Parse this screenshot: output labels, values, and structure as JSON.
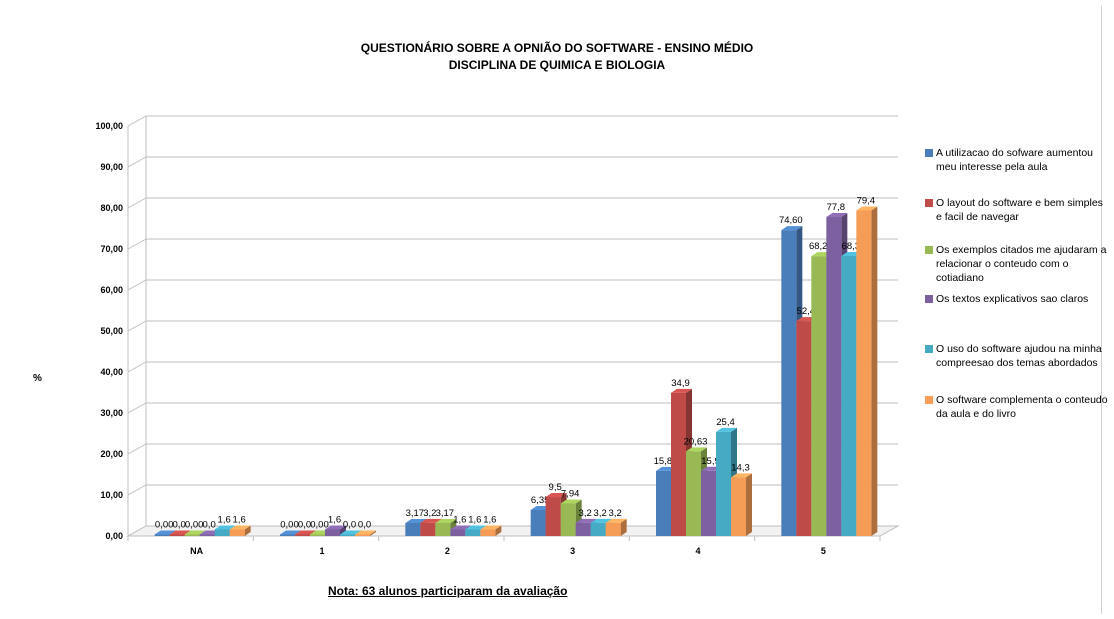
{
  "title_line1": "QUESTIONÁRIO SOBRE A OPNIÃO DO SOFTWARE - ENSINO MÉDIO",
  "title_line2": "DISCIPLINA DE QUIMICA E BIOLOGIA",
  "ylabel": "%",
  "note": "Nota: 63 alunos participaram da avaliação",
  "chart_data": {
    "type": "bar",
    "title": "QUESTIONÁRIO SOBRE A OPNIÃO DO SOFTWARE - ENSINO MÉDIO / DISCIPLINA DE QUIMICA E BIOLOGIA",
    "xlabel": "",
    "ylabel": "%",
    "ylim": [
      0,
      100
    ],
    "yticks": [
      "0,00",
      "10,00",
      "20,00",
      "30,00",
      "40,00",
      "50,00",
      "60,00",
      "70,00",
      "80,00",
      "90,00",
      "100,00"
    ],
    "grid": true,
    "legend_position": "right",
    "categories": [
      "NA",
      "1",
      "2",
      "3",
      "4",
      "5"
    ],
    "series": [
      {
        "name": "A utilizacao do sofware aumentou meu interesse pela aula",
        "color": "#4a7ebb",
        "values": [
          0.0,
          0.0,
          3.17,
          6.35,
          15.87,
          74.6
        ],
        "labels": [
          "0,00",
          "0,00",
          "3,17",
          "6,35",
          "15,87",
          "74,60"
        ]
      },
      {
        "name": "O layout do software e bem simples e facil de navegar",
        "color": "#be4b48",
        "values": [
          0.0,
          0.0,
          3.2,
          9.5,
          34.9,
          52.4
        ],
        "labels": [
          "0,0",
          "0,0",
          "3,2",
          "9,5",
          "34,9",
          "52,4"
        ]
      },
      {
        "name": "Os exemplos citados me ajudaram a relacionar o conteudo com o cotiadiano",
        "color": "#98b954",
        "values": [
          0.0,
          0.0,
          3.17,
          7.94,
          20.63,
          68.25
        ],
        "labels": [
          "0,00",
          "0,00",
          "3,17",
          "7,94",
          "20,63",
          "68,25"
        ]
      },
      {
        "name": "Os textos explicativos sao claros",
        "color": "#7d60a0",
        "values": [
          0.0,
          1.6,
          1.6,
          3.2,
          15.9,
          77.8
        ],
        "labels": [
          "0,0",
          "1,6",
          "1,6",
          "3,2",
          "15,9",
          "77,8"
        ]
      },
      {
        "name": "O uso do software ajudou na minha compreesao dos temas abordados",
        "color": "#46aac4",
        "values": [
          1.6,
          0.0,
          1.6,
          3.2,
          25.4,
          68.3
        ],
        "labels": [
          "1,6",
          "0,0",
          "1,6",
          "3,2",
          "25,4",
          "68,3"
        ]
      },
      {
        "name": "O software complementa o conteudo da aula e do livro",
        "color": "#f59d56",
        "values": [
          1.6,
          0.0,
          1.6,
          3.2,
          14.3,
          79.4
        ],
        "labels": [
          "1,6",
          "0,0",
          "1,6",
          "3,2",
          "14,3",
          "79,4"
        ]
      }
    ]
  }
}
